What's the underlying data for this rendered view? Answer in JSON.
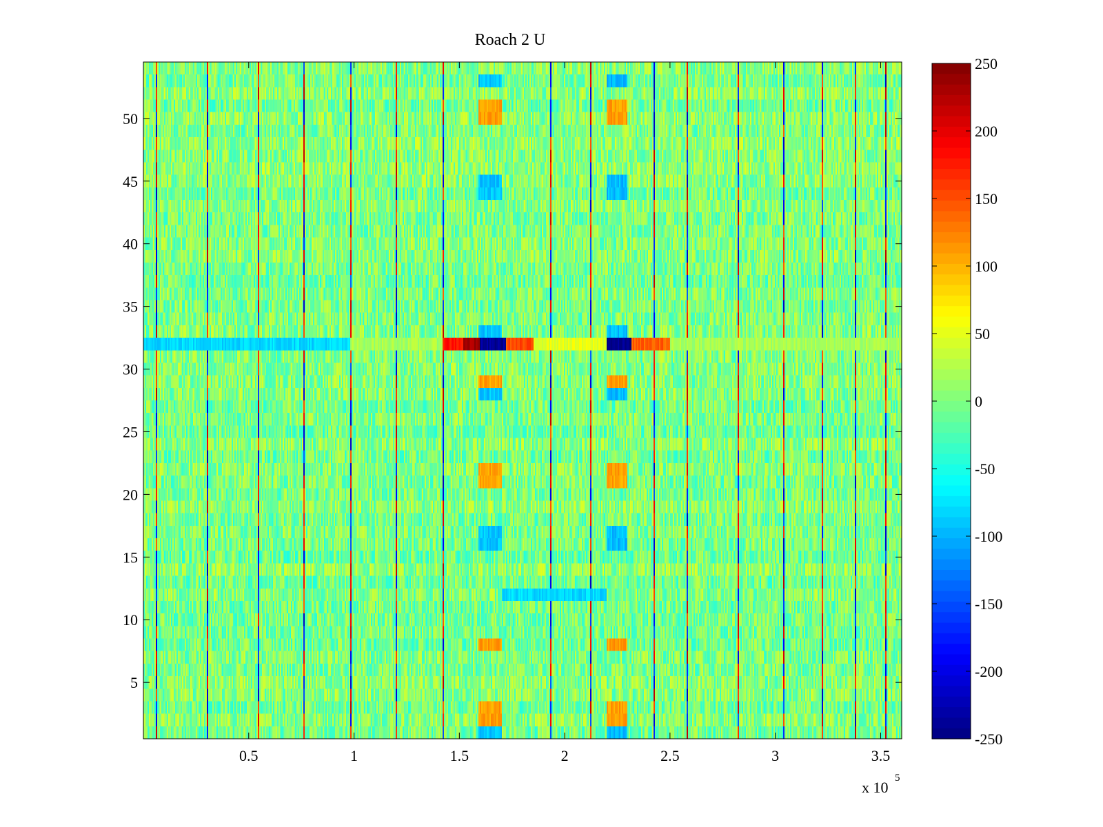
{
  "chart_data": {
    "type": "heatmap",
    "title": "Roach 2 U",
    "xlabel": "",
    "ylabel": "",
    "x_multiplier_label": "x 10",
    "x_multiplier_exponent": "5",
    "xlim": [
      0,
      3.6
    ],
    "ylim": [
      0.5,
      54.5
    ],
    "x_ticks": [
      0.5,
      1,
      1.5,
      2,
      2.5,
      3,
      3.5
    ],
    "x_tick_labels": [
      "0.5",
      "1",
      "1.5",
      "2",
      "2.5",
      "3",
      "3.5"
    ],
    "y_ticks": [
      5,
      10,
      15,
      20,
      25,
      30,
      35,
      40,
      45,
      50
    ],
    "y_tick_labels": [
      "5",
      "10",
      "15",
      "20",
      "25",
      "30",
      "35",
      "40",
      "45",
      "50"
    ],
    "colorbar": {
      "colormap": "jet",
      "clim": [
        -250,
        250
      ],
      "ticks": [
        250,
        200,
        150,
        100,
        50,
        0,
        -50,
        -100,
        -150,
        -200,
        -250
      ],
      "tick_labels": [
        "250",
        "200",
        "150",
        "100",
        "50",
        "0",
        "-50",
        "-100",
        "-150",
        "-200",
        "-250"
      ]
    },
    "rows": 54,
    "baseline_value_range": [
      -40,
      40
    ],
    "features": {
      "hot_row": 32,
      "hot_row_segments": [
        {
          "x": [
            0.0,
            0.98
          ],
          "value": -80
        },
        {
          "x": [
            0.98,
            1.42
          ],
          "value": 20
        },
        {
          "x": [
            1.42,
            1.52
          ],
          "value": 180
        },
        {
          "x": [
            1.52,
            1.6
          ],
          "value": 230
        },
        {
          "x": [
            1.6,
            1.72
          ],
          "value": -240
        },
        {
          "x": [
            1.72,
            1.85
          ],
          "value": 150
        },
        {
          "x": [
            1.85,
            2.2
          ],
          "value": 50
        },
        {
          "x": [
            2.2,
            2.32
          ],
          "value": -245
        },
        {
          "x": [
            2.32,
            2.5
          ],
          "value": 140
        },
        {
          "x": [
            2.5,
            3.6
          ],
          "value": 20
        }
      ],
      "highlight_columns": [
        {
          "x": [
            1.59,
            1.7
          ],
          "rows": [
            51,
            50,
            29,
            22,
            21,
            8,
            3,
            2
          ],
          "value": 110
        },
        {
          "x": [
            1.59,
            1.7
          ],
          "rows": [
            53,
            45,
            44,
            33,
            28,
            17,
            16,
            1
          ],
          "value": -90
        },
        {
          "x": [
            2.2,
            2.3
          ],
          "rows": [
            51,
            50,
            29,
            22,
            21,
            8,
            3,
            2
          ],
          "value": 110
        },
        {
          "x": [
            2.2,
            2.3
          ],
          "rows": [
            53,
            45,
            44,
            33,
            28,
            17,
            16,
            1
          ],
          "value": -95
        }
      ],
      "row_12_segment": {
        "x": [
          1.7,
          2.2
        ],
        "value": -80
      }
    }
  }
}
